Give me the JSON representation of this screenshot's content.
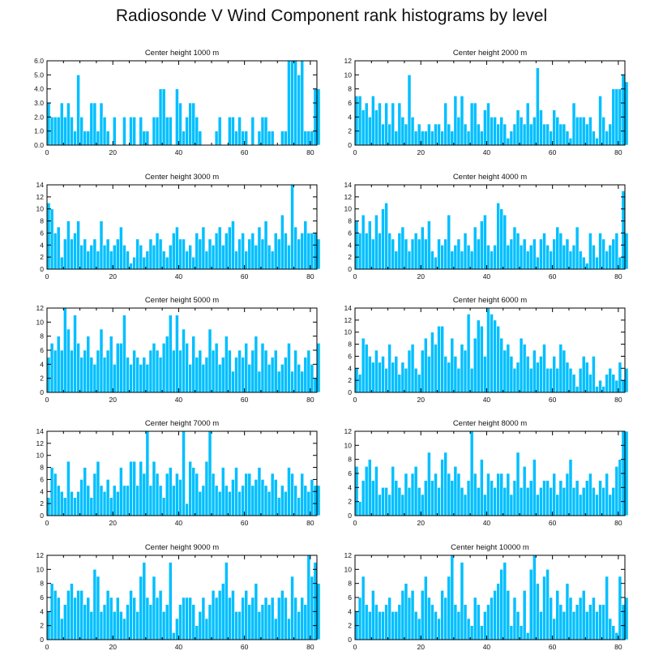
{
  "figure": {
    "title": "Radiosonde V Wind Component rank histograms by level"
  },
  "style": {
    "bar_color": "#00bfff",
    "bar_edge": "#ffffff",
    "frame_color": "#000000"
  },
  "chart_data": [
    {
      "type": "bar",
      "title": "Center height 1000 m",
      "xlim": [
        0,
        82
      ],
      "ylim": [
        0,
        6
      ],
      "xticks": [
        0,
        20,
        40,
        60,
        80
      ],
      "yticks": [
        0,
        1,
        2,
        3,
        4,
        5,
        6
      ],
      "ytick_labels": [
        "0.0",
        "1.0",
        "2.0",
        "3.0",
        "4.0",
        "5.0",
        "6.0"
      ],
      "values": [
        3,
        2,
        2,
        2,
        3,
        2,
        3,
        2,
        1,
        5,
        2,
        1,
        1,
        3,
        3,
        1,
        3,
        2,
        1,
        0,
        2,
        0,
        0,
        2,
        0,
        2,
        2,
        0,
        2,
        1,
        1,
        0,
        2,
        2,
        4,
        4,
        2,
        2,
        0,
        4,
        3,
        1,
        2,
        3,
        3,
        2,
        1,
        0,
        0,
        0,
        0,
        1,
        2,
        0,
        0,
        2,
        2,
        1,
        2,
        1,
        1,
        0,
        2,
        0,
        1,
        2,
        2,
        1,
        1,
        0,
        0,
        1,
        1,
        6,
        6,
        6,
        5,
        6,
        1,
        1,
        1,
        4,
        4
      ]
    },
    {
      "type": "bar",
      "title": "Center height 2000 m",
      "xlim": [
        0,
        82
      ],
      "ylim": [
        0,
        12
      ],
      "xticks": [
        0,
        20,
        40,
        60,
        80
      ],
      "yticks": [
        0,
        2,
        4,
        6,
        8,
        10,
        12
      ],
      "ytick_labels": [
        "0",
        "2",
        "4",
        "6",
        "8",
        "10",
        "12"
      ],
      "values": [
        7,
        7,
        5,
        6,
        4,
        7,
        5,
        6,
        3,
        6,
        3,
        6,
        2,
        6,
        4,
        3,
        10,
        4,
        2,
        3,
        2,
        2,
        3,
        2,
        3,
        3,
        2,
        6,
        3,
        2,
        7,
        4,
        7,
        3,
        2,
        6,
        6,
        3,
        2,
        5,
        6,
        4,
        4,
        3,
        4,
        3,
        1,
        2,
        3,
        5,
        4,
        3,
        6,
        3,
        4,
        11,
        5,
        3,
        3,
        2,
        5,
        4,
        3,
        3,
        2,
        1,
        6,
        4,
        4,
        4,
        3,
        4,
        2,
        1,
        7,
        4,
        2,
        3,
        8,
        8,
        8,
        10,
        9
      ]
    },
    {
      "type": "bar",
      "title": "Center height 3000 m",
      "xlim": [
        0,
        82
      ],
      "ylim": [
        0,
        14
      ],
      "xticks": [
        0,
        20,
        40,
        60,
        80
      ],
      "yticks": [
        0,
        2,
        4,
        6,
        8,
        10,
        12,
        14
      ],
      "ytick_labels": [
        "0",
        "2",
        "4",
        "6",
        "8",
        "10",
        "12",
        "14"
      ],
      "values": [
        11,
        10,
        6,
        7,
        2,
        5,
        8,
        5,
        6,
        8,
        4,
        5,
        3,
        4,
        5,
        3,
        8,
        4,
        5,
        3,
        4,
        5,
        7,
        4,
        3,
        1,
        2,
        5,
        4,
        2,
        3,
        5,
        4,
        6,
        5,
        3,
        2,
        4,
        6,
        7,
        5,
        5,
        3,
        4,
        2,
        6,
        5,
        7,
        3,
        5,
        4,
        6,
        7,
        4,
        6,
        7,
        8,
        3,
        5,
        6,
        3,
        5,
        6,
        4,
        7,
        5,
        8,
        4,
        3,
        6,
        5,
        9,
        6,
        4,
        14,
        7,
        5,
        6,
        8,
        6,
        6,
        6,
        5
      ]
    },
    {
      "type": "bar",
      "title": "Center height 4000 m",
      "xlim": [
        0,
        82
      ],
      "ylim": [
        0,
        14
      ],
      "xticks": [
        0,
        20,
        40,
        60,
        80
      ],
      "yticks": [
        0,
        2,
        4,
        6,
        8,
        10,
        12,
        14
      ],
      "ytick_labels": [
        "0",
        "2",
        "4",
        "6",
        "8",
        "10",
        "12",
        "14"
      ],
      "values": [
        8,
        6,
        9,
        6,
        8,
        5,
        9,
        6,
        10,
        11,
        6,
        5,
        3,
        6,
        7,
        5,
        3,
        5,
        6,
        5,
        7,
        5,
        8,
        3,
        2,
        5,
        4,
        5,
        9,
        3,
        4,
        5,
        3,
        6,
        4,
        3,
        7,
        5,
        8,
        9,
        4,
        3,
        4,
        11,
        10,
        9,
        4,
        5,
        7,
        6,
        4,
        5,
        3,
        4,
        5,
        2,
        5,
        6,
        4,
        3,
        5,
        7,
        6,
        4,
        5,
        3,
        4,
        7,
        3,
        2,
        1,
        6,
        4,
        2,
        6,
        5,
        3,
        4,
        5,
        6,
        2,
        13,
        6
      ]
    },
    {
      "type": "bar",
      "title": "Center height 5000 m",
      "xlim": [
        0,
        82
      ],
      "ylim": [
        0,
        12
      ],
      "xticks": [
        0,
        20,
        40,
        60,
        80
      ],
      "yticks": [
        0,
        2,
        4,
        6,
        8,
        10,
        12
      ],
      "ytick_labels": [
        "0",
        "2",
        "4",
        "6",
        "8",
        "10",
        "12"
      ],
      "values": [
        5,
        7,
        6,
        8,
        6,
        12,
        9,
        6,
        11,
        7,
        5,
        6,
        8,
        5,
        4,
        6,
        9,
        5,
        6,
        8,
        4,
        7,
        7,
        11,
        5,
        4,
        6,
        5,
        4,
        5,
        4,
        6,
        7,
        6,
        5,
        7,
        8,
        11,
        6,
        11,
        6,
        9,
        7,
        4,
        8,
        5,
        6,
        4,
        5,
        9,
        6,
        7,
        4,
        5,
        8,
        6,
        3,
        5,
        6,
        5,
        7,
        4,
        6,
        8,
        3,
        7,
        6,
        4,
        5,
        6,
        3,
        4,
        5,
        7,
        3,
        6,
        4,
        3,
        5,
        6,
        4,
        2,
        7
      ]
    },
    {
      "type": "bar",
      "title": "Center height 6000 m",
      "xlim": [
        0,
        82
      ],
      "ylim": [
        0,
        14
      ],
      "xticks": [
        0,
        20,
        40,
        60,
        80
      ],
      "yticks": [
        0,
        2,
        4,
        6,
        8,
        10,
        12,
        14
      ],
      "ytick_labels": [
        "0",
        "2",
        "4",
        "6",
        "8",
        "10",
        "12",
        "14"
      ],
      "values": [
        4,
        3,
        9,
        8,
        6,
        5,
        7,
        5,
        6,
        4,
        8,
        5,
        6,
        3,
        5,
        4,
        7,
        8,
        4,
        3,
        7,
        9,
        6,
        10,
        8,
        11,
        11,
        6,
        5,
        9,
        6,
        4,
        8,
        7,
        13,
        4,
        9,
        12,
        11,
        6,
        14,
        13,
        12,
        11,
        9,
        7,
        8,
        6,
        4,
        5,
        9,
        8,
        6,
        4,
        7,
        5,
        6,
        8,
        4,
        4,
        6,
        4,
        8,
        7,
        5,
        4,
        3,
        1,
        4,
        6,
        5,
        3,
        6,
        1,
        2,
        1,
        3,
        4,
        3,
        2,
        5,
        2,
        4
      ]
    },
    {
      "type": "bar",
      "title": "Center height 7000 m",
      "xlim": [
        0,
        82
      ],
      "ylim": [
        0,
        14
      ],
      "xticks": [
        0,
        20,
        40,
        60,
        80
      ],
      "yticks": [
        0,
        2,
        4,
        6,
        8,
        10,
        12,
        14
      ],
      "ytick_labels": [
        "0",
        "2",
        "4",
        "6",
        "8",
        "10",
        "12",
        "14"
      ],
      "values": [
        3,
        8,
        7,
        5,
        4,
        3,
        9,
        4,
        3,
        4,
        6,
        8,
        5,
        3,
        7,
        9,
        5,
        4,
        6,
        3,
        5,
        4,
        8,
        5,
        5,
        9,
        9,
        5,
        9,
        7,
        14,
        5,
        9,
        7,
        5,
        3,
        7,
        8,
        5,
        7,
        6,
        14,
        2,
        9,
        8,
        7,
        4,
        5,
        9,
        14,
        7,
        5,
        4,
        8,
        5,
        4,
        6,
        8,
        4,
        5,
        7,
        7,
        5,
        6,
        8,
        6,
        5,
        4,
        7,
        6,
        3,
        5,
        4,
        8,
        7,
        5,
        3,
        7,
        5,
        4,
        6,
        5,
        5
      ]
    },
    {
      "type": "bar",
      "title": "Center height 8000 m",
      "xlim": [
        0,
        82
      ],
      "ylim": [
        0,
        12
      ],
      "xticks": [
        0,
        20,
        40,
        60,
        80
      ],
      "yticks": [
        0,
        2,
        4,
        6,
        8,
        10,
        12
      ],
      "ytick_labels": [
        "0",
        "2",
        "4",
        "6",
        "8",
        "10",
        "12"
      ],
      "values": [
        7,
        2,
        5,
        7,
        8,
        5,
        7,
        3,
        4,
        4,
        3,
        7,
        5,
        4,
        3,
        6,
        4,
        6,
        7,
        4,
        3,
        5,
        9,
        5,
        6,
        4,
        8,
        9,
        6,
        5,
        7,
        6,
        4,
        3,
        5,
        12,
        6,
        4,
        8,
        3,
        6,
        5,
        4,
        6,
        6,
        4,
        6,
        3,
        5,
        9,
        4,
        7,
        4,
        5,
        8,
        3,
        4,
        5,
        5,
        4,
        6,
        3,
        5,
        4,
        6,
        8,
        4,
        5,
        3,
        4,
        5,
        6,
        4,
        3,
        5,
        4,
        6,
        3,
        4,
        7,
        8,
        12,
        12
      ]
    },
    {
      "type": "bar",
      "title": "Center height 9000 m",
      "xlim": [
        0,
        82
      ],
      "ylim": [
        0,
        12
      ],
      "xticks": [
        0,
        20,
        40,
        60,
        80
      ],
      "yticks": [
        0,
        2,
        4,
        6,
        8,
        10,
        12
      ],
      "ytick_labels": [
        "0",
        "2",
        "4",
        "6",
        "8",
        "10",
        "12"
      ],
      "values": [
        4,
        8,
        7,
        6,
        3,
        5,
        7,
        8,
        6,
        7,
        7,
        5,
        6,
        4,
        10,
        9,
        4,
        5,
        7,
        6,
        4,
        6,
        4,
        3,
        5,
        7,
        6,
        4,
        9,
        11,
        6,
        5,
        9,
        6,
        7,
        4,
        5,
        11,
        1,
        3,
        5,
        6,
        6,
        6,
        5,
        2,
        4,
        6,
        3,
        5,
        7,
        6,
        7,
        8,
        11,
        6,
        7,
        4,
        4,
        6,
        7,
        5,
        6,
        8,
        4,
        5,
        6,
        5,
        6,
        3,
        6,
        7,
        6,
        3,
        9,
        6,
        4,
        6,
        5,
        12,
        9,
        11,
        8
      ]
    },
    {
      "type": "bar",
      "title": "Center height 10000 m",
      "xlim": [
        0,
        82
      ],
      "ylim": [
        0,
        12
      ],
      "xticks": [
        0,
        20,
        40,
        60,
        80
      ],
      "yticks": [
        0,
        2,
        4,
        6,
        8,
        10,
        12
      ],
      "ytick_labels": [
        "0",
        "2",
        "4",
        "6",
        "8",
        "10",
        "12"
      ],
      "values": [
        4,
        6,
        9,
        5,
        4,
        7,
        5,
        4,
        4,
        5,
        6,
        4,
        4,
        5,
        7,
        8,
        6,
        7,
        4,
        3,
        7,
        9,
        6,
        5,
        4,
        3,
        7,
        6,
        9,
        12,
        5,
        4,
        11,
        5,
        3,
        2,
        6,
        5,
        2,
        4,
        5,
        6,
        7,
        8,
        10,
        11,
        7,
        2,
        6,
        4,
        2,
        7,
        1,
        10,
        12,
        8,
        4,
        9,
        10,
        6,
        3,
        7,
        5,
        4,
        8,
        6,
        4,
        5,
        6,
        7,
        4,
        5,
        6,
        4,
        5,
        5,
        9,
        3,
        2,
        1,
        9,
        5,
        6
      ]
    }
  ]
}
